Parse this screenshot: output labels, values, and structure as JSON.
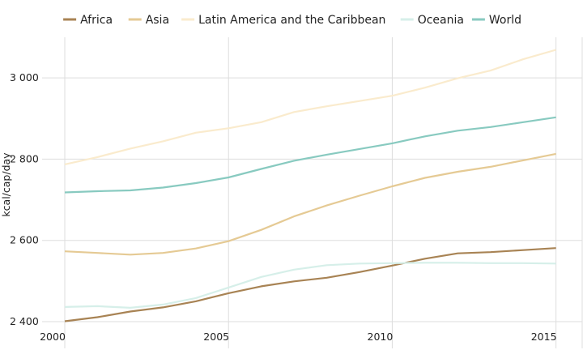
{
  "chart_data": {
    "type": "line",
    "title": "",
    "xlabel": "",
    "ylabel": "kcal/cap/day",
    "xlim": [
      2000,
      2015.8
    ],
    "ylim": [
      2390,
      3100
    ],
    "x_ticks": [
      2000,
      2005,
      2010,
      2015
    ],
    "x_tick_labels": [
      "2000",
      "2005",
      "2010",
      "2015"
    ],
    "y_ticks": [
      2400,
      2600,
      2800,
      3000
    ],
    "y_tick_labels": [
      "2 400",
      "2 600",
      "2 800",
      "3 000"
    ],
    "grid": true,
    "legend_position": "top",
    "x": [
      2000,
      2001,
      2002,
      2003,
      2004,
      2005,
      2006,
      2007,
      2008,
      2009,
      2010,
      2011,
      2012,
      2013,
      2014,
      2015
    ],
    "series": [
      {
        "name": "Africa",
        "color": "#a88354",
        "values": [
          2401,
          2411,
          2425,
          2435,
          2450,
          2470,
          2487,
          2499,
          2508,
          2522,
          2538,
          2555,
          2568,
          2571,
          2576,
          2581
        ]
      },
      {
        "name": "Asia",
        "color": "#e5ca94",
        "values": [
          2573,
          2569,
          2565,
          2569,
          2580,
          2598,
          2626,
          2659,
          2686,
          2710,
          2733,
          2754,
          2769,
          2781,
          2797,
          2813
        ]
      },
      {
        "name": "Latin America and the Caribbean",
        "color": "#faebcd",
        "values": [
          2787,
          2805,
          2826,
          2844,
          2865,
          2876,
          2891,
          2916,
          2930,
          2943,
          2956,
          2976,
          2999,
          3018,
          3046,
          3069
        ]
      },
      {
        "name": "Oceania",
        "color": "#d6efe9",
        "values": [
          2436,
          2438,
          2434,
          2442,
          2458,
          2484,
          2510,
          2528,
          2539,
          2543,
          2544,
          2545,
          2545,
          2544,
          2544,
          2543
        ]
      },
      {
        "name": "World",
        "color": "#88cac0",
        "values": [
          2718,
          2721,
          2723,
          2730,
          2741,
          2755,
          2776,
          2796,
          2811,
          2825,
          2839,
          2856,
          2870,
          2879,
          2891,
          2903
        ]
      }
    ]
  }
}
